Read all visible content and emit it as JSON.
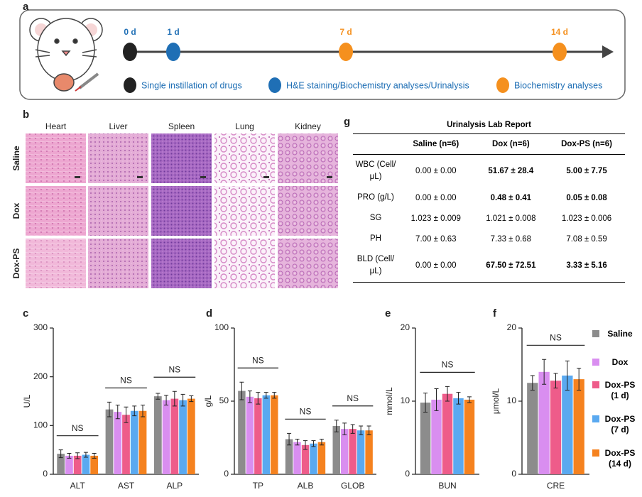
{
  "panel_letters": [
    "a",
    "b",
    "g",
    "c",
    "d",
    "e",
    "f"
  ],
  "timeline": {
    "points": [
      {
        "label": "0 d",
        "color": "#222222",
        "label_color": "#1f6fb5"
      },
      {
        "label": "1 d",
        "color": "#1f6fb5",
        "label_color": "#1f6fb5"
      },
      {
        "label": "7 d",
        "color": "#f5901e",
        "label_color": "#f5901e"
      },
      {
        "label": "14 d",
        "color": "#f5901e",
        "label_color": "#f5901e"
      }
    ],
    "legend": [
      {
        "text": "Single instillation of drugs",
        "color": "#222222"
      },
      {
        "text": "H&E staining/Biochemistry analyses/Urinalysis",
        "color": "#1f6fb5"
      },
      {
        "text": "Biochemistry analyses",
        "color": "#f5901e"
      }
    ]
  },
  "histology": {
    "columns": [
      "Heart",
      "Liver",
      "Spleen",
      "Lung",
      "Kidney"
    ],
    "rows": [
      "Saline",
      "Dox",
      "Dox-PS"
    ]
  },
  "table": {
    "title": "Urinalysis Lab Report",
    "columns": [
      "Saline (n=6)",
      "Dox (n=6)",
      "Dox-PS (n=6)"
    ],
    "rows": [
      {
        "label": "WBC (Cell/μL)",
        "cells": [
          "0.00 ± 0.00",
          "51.67 ± 28.4",
          "5.00 ± 7.75"
        ],
        "bold": true
      },
      {
        "label": "PRO (g/L)",
        "cells": [
          "0.00 ± 0.00",
          "0.48 ± 0.41",
          "0.05 ± 0.08"
        ],
        "bold": true
      },
      {
        "label": "SG",
        "cells": [
          "1.023 ± 0.009",
          "1.021 ± 0.008",
          "1.023 ± 0.006"
        ],
        "bold": false
      },
      {
        "label": "PH",
        "cells": [
          "7.00 ± 0.63",
          "7.33 ± 0.68",
          "7.08 ± 0.59"
        ],
        "bold": false
      },
      {
        "label": "BLD (Cell/μL)",
        "cells": [
          "0.00 ± 0.00",
          "67.50 ± 72.51",
          "3.33 ± 5.16"
        ],
        "bold": true
      }
    ]
  },
  "chart_data": [
    {
      "type": "bar",
      "ylabel": "U/L",
      "categories": [
        "ALT",
        "AST",
        "ALP"
      ],
      "ylim": [
        0,
        300
      ],
      "yticks": [
        0,
        100,
        200,
        300
      ],
      "annotations": [
        {
          "text": "NS",
          "category": "ALT"
        },
        {
          "text": "NS",
          "category": "AST"
        },
        {
          "text": "NS",
          "category": "ALP"
        }
      ],
      "series": [
        {
          "color": "#8c8c8c",
          "values": [
            42,
            133,
            160
          ],
          "errors": [
            8,
            15,
            6
          ]
        },
        {
          "color": "#d98ef0",
          "values": [
            38,
            128,
            152
          ],
          "errors": [
            5,
            14,
            10
          ]
        },
        {
          "color": "#ee5c8a",
          "values": [
            38,
            122,
            155
          ],
          "errors": [
            6,
            16,
            15
          ]
        },
        {
          "color": "#5aa9f0",
          "values": [
            40,
            130,
            152
          ],
          "errors": [
            5,
            10,
            12
          ]
        },
        {
          "color": "#f5821f",
          "values": [
            38,
            130,
            155
          ],
          "errors": [
            5,
            12,
            6
          ]
        }
      ]
    },
    {
      "type": "bar",
      "ylabel": "g/L",
      "categories": [
        "TP",
        "ALB",
        "GLOB"
      ],
      "ylim": [
        0,
        100
      ],
      "yticks": [
        0,
        50,
        100
      ],
      "annotations": [
        {
          "text": "NS",
          "category": "TP"
        },
        {
          "text": "NS",
          "category": "ALB"
        },
        {
          "text": "NS",
          "category": "GLOB"
        }
      ],
      "series": [
        {
          "color": "#8c8c8c",
          "values": [
            57,
            24,
            33
          ],
          "errors": [
            6,
            4,
            4
          ]
        },
        {
          "color": "#d98ef0",
          "values": [
            53,
            22,
            31
          ],
          "errors": [
            4,
            2,
            4
          ]
        },
        {
          "color": "#ee5c8a",
          "values": [
            52,
            20,
            31
          ],
          "errors": [
            4,
            3,
            3
          ]
        },
        {
          "color": "#5aa9f0",
          "values": [
            54,
            21,
            30
          ],
          "errors": [
            2,
            2,
            3
          ]
        },
        {
          "color": "#f5821f",
          "values": [
            54,
            22,
            30
          ],
          "errors": [
            2,
            2,
            3
          ]
        }
      ]
    },
    {
      "type": "bar",
      "ylabel": "mmol/L",
      "categories": [
        "BUN"
      ],
      "ylim": [
        0,
        20
      ],
      "yticks": [
        0,
        10,
        20
      ],
      "annotations": [
        {
          "text": "NS",
          "category": "BUN"
        }
      ],
      "series": [
        {
          "color": "#8c8c8c",
          "values": [
            9.8
          ],
          "errors": [
            1.3
          ]
        },
        {
          "color": "#d98ef0",
          "values": [
            10.2
          ],
          "errors": [
            1.5
          ]
        },
        {
          "color": "#ee5c8a",
          "values": [
            11
          ],
          "errors": [
            1
          ]
        },
        {
          "color": "#5aa9f0",
          "values": [
            10.4
          ],
          "errors": [
            0.8
          ]
        },
        {
          "color": "#f5821f",
          "values": [
            10.2
          ],
          "errors": [
            0.4
          ]
        }
      ]
    },
    {
      "type": "bar",
      "ylabel": "μmol/L",
      "categories": [
        "CRE"
      ],
      "ylim": [
        0,
        20
      ],
      "yticks": [
        0,
        10,
        20
      ],
      "annotations": [
        {
          "text": "NS",
          "category": "CRE"
        }
      ],
      "series": [
        {
          "name": "Saline",
          "color": "#8c8c8c",
          "values": [
            12.5
          ],
          "errors": [
            1
          ]
        },
        {
          "name": "Dox",
          "color": "#d98ef0",
          "values": [
            14
          ],
          "errors": [
            1.7
          ]
        },
        {
          "name": "Dox-PS (1 d)",
          "color": "#ee5c8a",
          "values": [
            12.8
          ],
          "errors": [
            1
          ]
        },
        {
          "name": "Dox-PS (7 d)",
          "color": "#5aa9f0",
          "values": [
            13.5
          ],
          "errors": [
            2
          ]
        },
        {
          "name": "Dox-PS (14 d)",
          "color": "#f5821f",
          "values": [
            13
          ],
          "errors": [
            1.5
          ]
        }
      ]
    }
  ]
}
